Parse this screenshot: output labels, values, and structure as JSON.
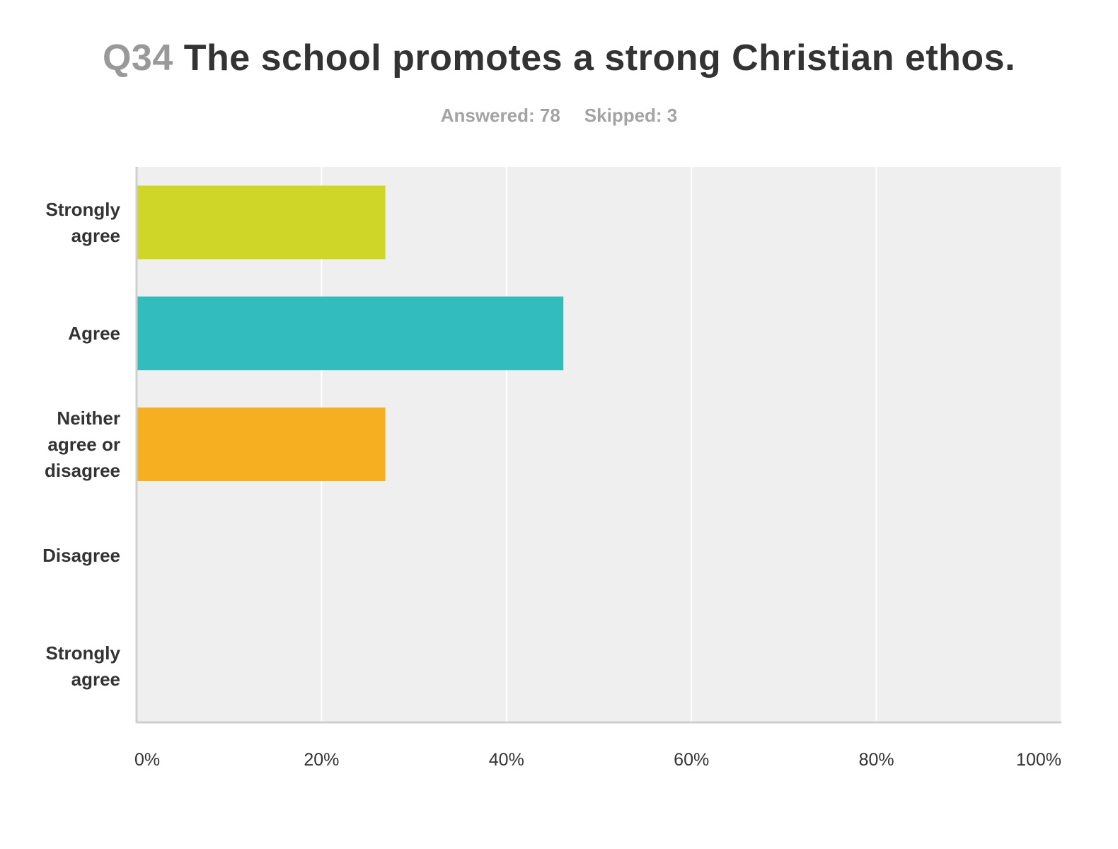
{
  "header": {
    "question_number": "Q34",
    "question_text": "The school promotes a strong Christian ethos.",
    "answered": "Answered: 78",
    "skipped": "Skipped: 3"
  },
  "chart_data": {
    "type": "bar",
    "orientation": "horizontal",
    "title": "Q34 The school promotes a strong Christian ethos.",
    "categories": [
      "Strongly agree",
      "Agree",
      "Neither agree or disagree",
      "Disagree",
      "Strongly agree"
    ],
    "values": [
      26.9,
      46.15,
      26.9,
      0,
      0
    ],
    "colors": [
      "#d0d627",
      "#33bcbe",
      "#f5af20",
      "#e56b25",
      "#999999"
    ],
    "xlim": [
      0,
      100
    ],
    "ticks": [
      "0%",
      "20%",
      "40%",
      "60%",
      "80%",
      "100%"
    ],
    "tick_values": [
      0,
      20,
      40,
      60,
      80,
      100
    ],
    "grid": true,
    "plot_background": "#efefef"
  }
}
